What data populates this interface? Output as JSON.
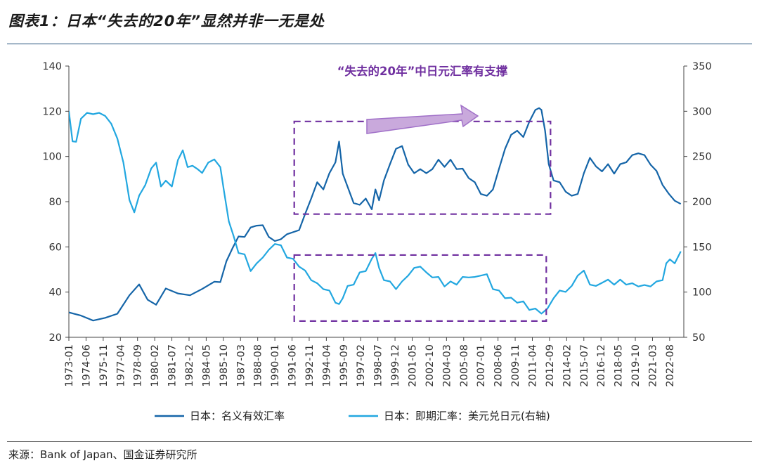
{
  "title": "图表1：日本“失去的20年”显然并非一无是处",
  "source": "来源：Bank of Japan、国金证券研究所",
  "colors": {
    "nominal": "#1565a8",
    "spot": "#22a7e0",
    "annotation": "#7030a0",
    "arrow_fill": "#c9a9dc"
  },
  "chart_data": {
    "type": "line",
    "title": "图表1：日本“失去的20年”显然并非一无是处",
    "annotation": "“失去的20年”中日元汇率有支撑",
    "y_left": {
      "lim": [
        20,
        140
      ],
      "ticks": [
        20,
        40,
        60,
        80,
        100,
        120,
        140
      ]
    },
    "y_right": {
      "lim": [
        50,
        350
      ],
      "ticks": [
        50,
        100,
        150,
        200,
        250,
        300,
        350
      ]
    },
    "x_range": [
      1973.0,
      2023.75
    ],
    "x_ticks": [
      "1973-01",
      "1974-06",
      "1975-11",
      "1977-04",
      "1978-09",
      "1980-02",
      "1981-07",
      "1982-12",
      "1984-05",
      "1985-10",
      "1987-03",
      "1988-08",
      "1990-01",
      "1991-06",
      "1992-11",
      "1994-04",
      "1995-09",
      "1997-02",
      "1998-07",
      "1999-12",
      "2001-05",
      "2002-10",
      "2004-03",
      "2005-08",
      "2007-01",
      "2008-06",
      "2009-11",
      "2011-04",
      "2012-09",
      "2014-02",
      "2015-07",
      "2016-12",
      "2018-05",
      "2019-10",
      "2021-03",
      "2022-08"
    ],
    "series": [
      {
        "name": "日本：名义有效汇率",
        "axis": "left",
        "x": [
          1973.0,
          1974.0,
          1975.0,
          1976.0,
          1977.0,
          1978.0,
          1978.8,
          1979.5,
          1980.2,
          1981.0,
          1982.0,
          1983.0,
          1984.0,
          1985.0,
          1985.5,
          1986.0,
          1986.5,
          1987.0,
          1987.5,
          1988.0,
          1988.5,
          1989.0,
          1989.5,
          1990.0,
          1990.5,
          1991.0,
          1992.0,
          1992.5,
          1993.0,
          1993.5,
          1994.0,
          1994.5,
          1995.0,
          1995.3,
          1995.6,
          1996.0,
          1996.5,
          1997.0,
          1997.5,
          1998.0,
          1998.3,
          1998.6,
          1999.0,
          1999.5,
          2000.0,
          2000.5,
          2001.0,
          2001.5,
          2002.0,
          2002.5,
          2003.0,
          2003.5,
          2004.0,
          2004.5,
          2005.0,
          2005.5,
          2006.0,
          2006.5,
          2007.0,
          2007.5,
          2008.0,
          2008.5,
          2009.0,
          2009.5,
          2010.0,
          2010.5,
          2011.0,
          2011.5,
          2011.8,
          2012.0,
          2012.3,
          2012.6,
          2013.0,
          2013.5,
          2014.0,
          2014.5,
          2015.0,
          2015.5,
          2016.0,
          2016.5,
          2017.0,
          2017.5,
          2018.0,
          2018.5,
          2019.0,
          2019.5,
          2020.0,
          2020.5,
          2021.0,
          2021.5,
          2022.0,
          2022.5,
          2023.0,
          2023.5
        ],
        "values": [
          31,
          29,
          28,
          28,
          31,
          38,
          44,
          36,
          35,
          41,
          40,
          38,
          42,
          44,
          45,
          53,
          60,
          64,
          65,
          68,
          70,
          69,
          65,
          62,
          64,
          65,
          68,
          74,
          82,
          88,
          86,
          92,
          98,
          106,
          93,
          86,
          80,
          78,
          82,
          76,
          86,
          80,
          90,
          96,
          104,
          104,
          97,
          92,
          95,
          92,
          95,
          98,
          96,
          98,
          95,
          94,
          91,
          88,
          84,
          82,
          86,
          94,
          104,
          109,
          112,
          108,
          116,
          120,
          122,
          120,
          112,
          96,
          90,
          88,
          85,
          82,
          84,
          92,
          100,
          95,
          94,
          96,
          93,
          96,
          98,
          100,
          102,
          100,
          97,
          93,
          88,
          83,
          81,
          79
        ]
      },
      {
        "name": "日本：即期汇率：美元兑日元(右轴)",
        "axis": "right",
        "x": [
          1973.0,
          1973.3,
          1973.6,
          1974.0,
          1974.5,
          1975.0,
          1975.5,
          1976.0,
          1976.5,
          1977.0,
          1977.5,
          1978.0,
          1978.4,
          1978.8,
          1979.3,
          1979.8,
          1980.2,
          1980.6,
          1981.0,
          1981.5,
          1982.0,
          1982.4,
          1982.8,
          1983.2,
          1983.6,
          1984.0,
          1984.5,
          1985.0,
          1985.5,
          1985.8,
          1986.2,
          1986.6,
          1987.0,
          1987.5,
          1988.0,
          1988.5,
          1989.0,
          1989.5,
          1990.0,
          1990.5,
          1991.0,
          1991.5,
          1992.0,
          1992.5,
          1993.0,
          1993.5,
          1994.0,
          1994.5,
          1995.0,
          1995.3,
          1995.6,
          1996.0,
          1996.5,
          1997.0,
          1997.5,
          1998.0,
          1998.3,
          1998.6,
          1999.0,
          1999.5,
          2000.0,
          2000.5,
          2001.0,
          2001.5,
          2002.0,
          2002.5,
          2003.0,
          2003.5,
          2004.0,
          2004.5,
          2005.0,
          2005.5,
          2006.0,
          2006.5,
          2007.0,
          2007.5,
          2008.0,
          2008.5,
          2009.0,
          2009.5,
          2010.0,
          2010.5,
          2011.0,
          2011.5,
          2012.0,
          2012.5,
          2013.0,
          2013.5,
          2014.0,
          2014.5,
          2015.0,
          2015.5,
          2016.0,
          2016.5,
          2017.0,
          2017.5,
          2018.0,
          2018.5,
          2019.0,
          2019.5,
          2020.0,
          2020.5,
          2021.0,
          2021.5,
          2022.0,
          2022.3,
          2022.6,
          2023.0,
          2023.5
        ],
        "values": [
          300,
          265,
          268,
          290,
          300,
          295,
          300,
          293,
          288,
          268,
          245,
          200,
          190,
          205,
          220,
          235,
          245,
          215,
          225,
          215,
          248,
          255,
          240,
          238,
          238,
          230,
          245,
          245,
          240,
          210,
          180,
          160,
          145,
          140,
          125,
          130,
          140,
          145,
          155,
          150,
          140,
          135,
          130,
          122,
          115,
          108,
          105,
          100,
          90,
          85,
          95,
          105,
          110,
          120,
          125,
          135,
          145,
          125,
          115,
          110,
          105,
          110,
          120,
          125,
          130,
          120,
          118,
          115,
          108,
          110,
          110,
          115,
          118,
          115,
          120,
          118,
          105,
          100,
          95,
          92,
          90,
          88,
          82,
          80,
          78,
          80,
          95,
          100,
          102,
          105,
          120,
          122,
          110,
          105,
          112,
          112,
          110,
          112,
          110,
          108,
          108,
          106,
          108,
          110,
          115,
          130,
          138,
          130,
          145
        ]
      }
    ],
    "legend": [
      "日本：名义有效汇率",
      "日本：即期汇率：美元兑日元(右轴)"
    ],
    "legend_position": "bottom-center"
  }
}
